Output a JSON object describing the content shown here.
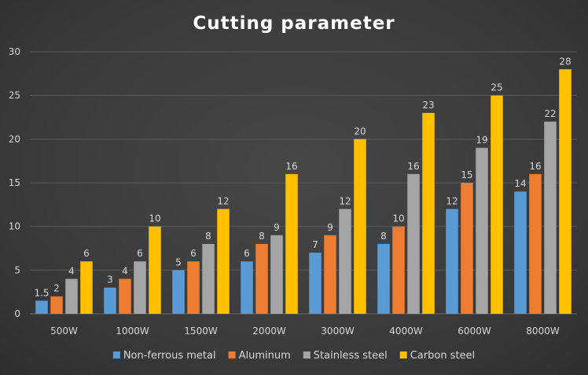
{
  "chart_data": {
    "type": "bar",
    "title": "Cutting parameter",
    "xlabel": "",
    "ylabel": "",
    "ylim": [
      0,
      30
    ],
    "yticks": [
      0,
      5,
      10,
      15,
      20,
      25,
      30
    ],
    "grid": true,
    "legend_position": "bottom",
    "categories": [
      "500W",
      "1000W",
      "1500W",
      "2000W",
      "3000W",
      "4000W",
      "6000W",
      "8000W"
    ],
    "series": [
      {
        "name": "Non-ferrous metal",
        "color": "#5b9bd5",
        "values": [
          1.5,
          3,
          5,
          6,
          7,
          8,
          12,
          14
        ]
      },
      {
        "name": "Aluminum",
        "color": "#ed7d31",
        "values": [
          2,
          4,
          6,
          8,
          9,
          10,
          15,
          16
        ]
      },
      {
        "name": "Stainless steel",
        "color": "#a5a5a5",
        "values": [
          4,
          6,
          8,
          9,
          12,
          16,
          19,
          22
        ]
      },
      {
        "name": "Carbon steel",
        "color": "#ffc000",
        "values": [
          6,
          10,
          12,
          16,
          20,
          23,
          25,
          28
        ]
      }
    ]
  }
}
